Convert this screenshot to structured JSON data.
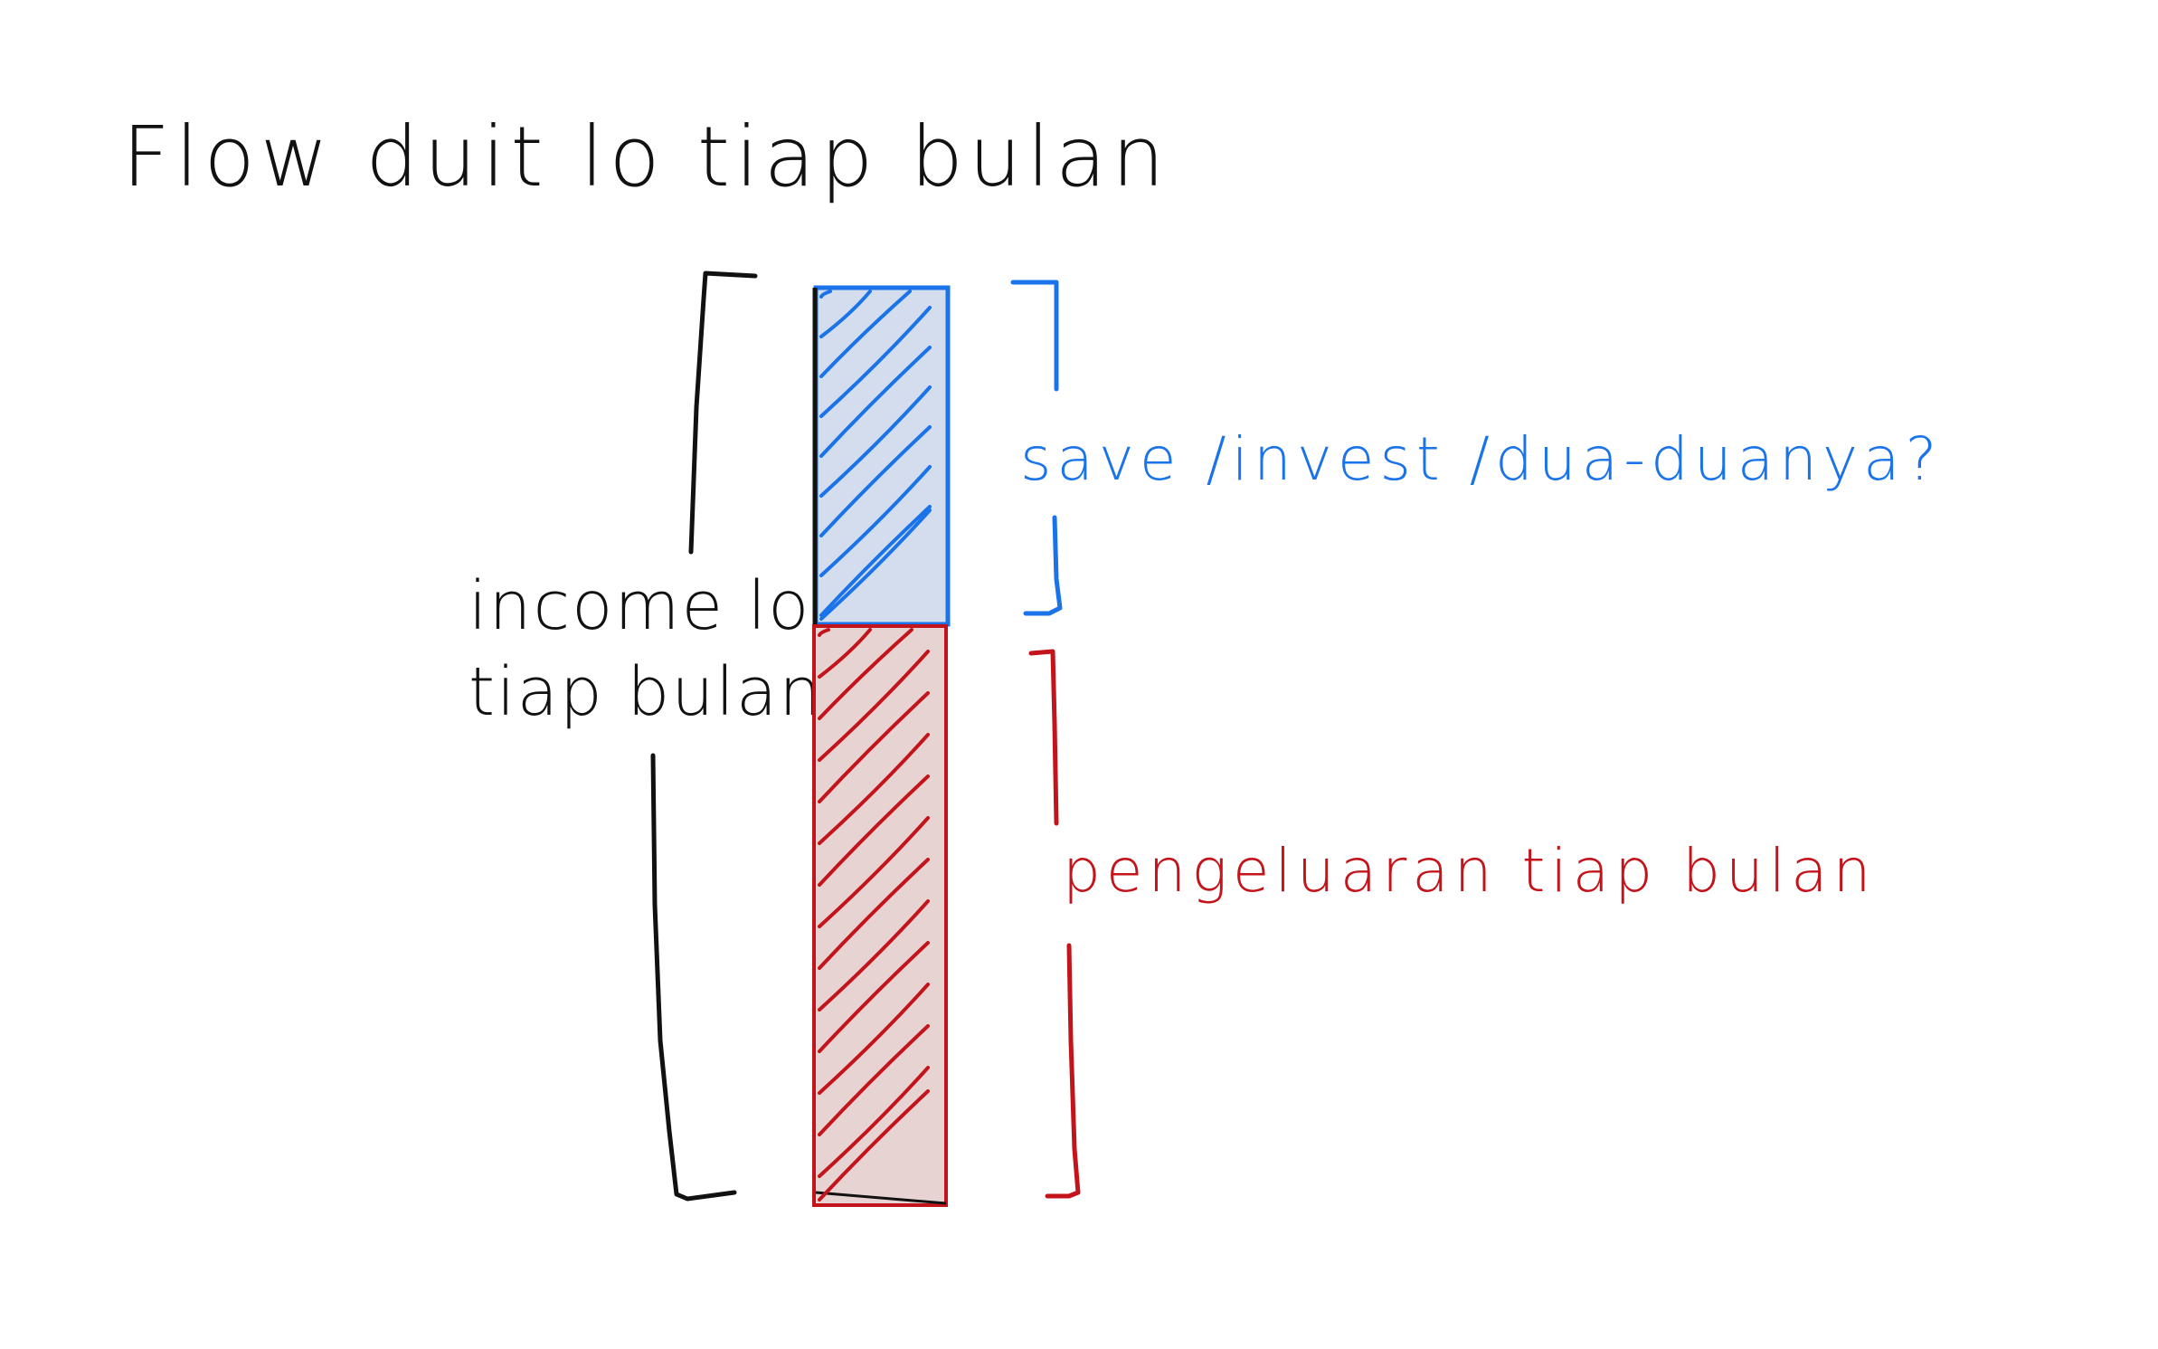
{
  "title": "Flow duit lo tiap bulan",
  "income_label": {
    "line1": "income lo",
    "line2": "tiap bulan"
  },
  "save_label": "save /invest /dua-duanya?",
  "expense_label": "pengeluaran tiap bulan",
  "colors": {
    "ink": "#111111",
    "save_stroke": "#1a73e8",
    "save_fill": "#d3dded",
    "expense_stroke": "#c4141b",
    "expense_fill": "#e8d3d3"
  }
}
